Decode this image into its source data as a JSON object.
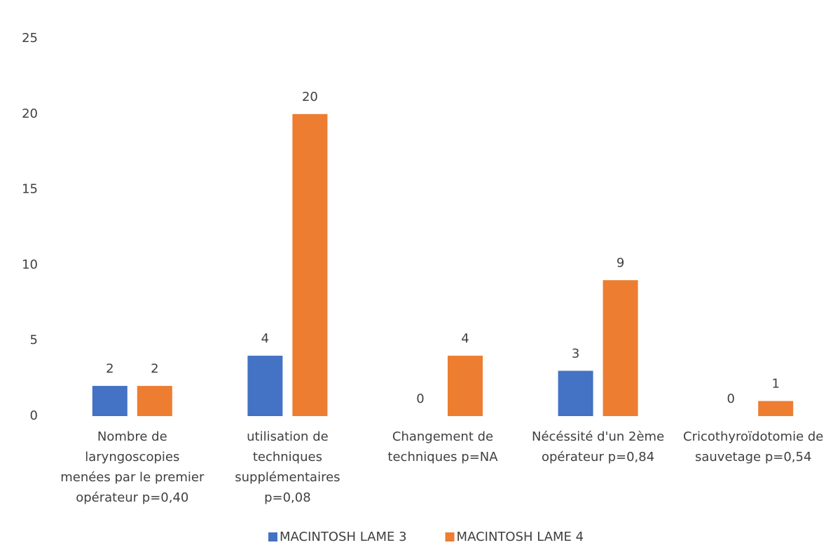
{
  "chart_data": {
    "type": "bar",
    "categories": [
      [
        "Nombre de",
        "laryngoscopies",
        "menées par le premier",
        "opérateur p=0,40"
      ],
      [
        "utilisation de",
        "techniques",
        "supplémentaires",
        "p=0,08"
      ],
      [
        "Changement de",
        "techniques p=NA"
      ],
      [
        "Nécéssité d'un 2ème",
        "opérateur p=0,84"
      ],
      [
        "Cricothyroïdotomie de",
        "sauvetage p=0,54"
      ]
    ],
    "series": [
      {
        "name": "MACINTOSH LAME 3",
        "color": "#4472c4",
        "values": [
          2,
          4,
          0,
          3,
          0
        ]
      },
      {
        "name": "MACINTOSH LAME 4",
        "color": "#ed7d31",
        "values": [
          2,
          20,
          4,
          9,
          1
        ]
      }
    ],
    "ylim": [
      0,
      25
    ],
    "yticks": [
      0,
      5,
      10,
      15,
      20,
      25
    ],
    "grid": false,
    "legend": "bottom"
  }
}
